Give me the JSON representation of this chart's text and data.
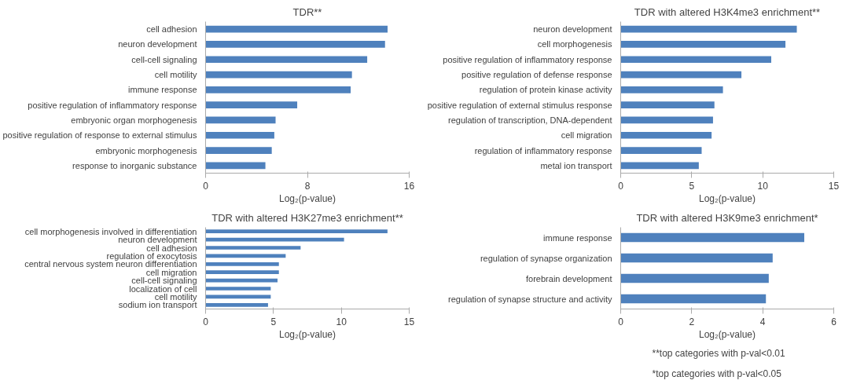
{
  "chart_data": [
    {
      "type": "bar",
      "orientation": "horizontal",
      "title": "TDR**",
      "xlabel": "Log₂(p-value)",
      "color": "#4f81bd",
      "xlim": [
        0,
        16
      ],
      "xticks": [
        0,
        8,
        16
      ],
      "categories": [
        "cell adhesion",
        "neuron development",
        "cell-cell signaling",
        "cell motility",
        "immune response",
        "positive regulation of inflammatory response",
        "embryonic organ morphogenesis",
        "positive regulation of response to external stimulus",
        "embryonic morphogenesis",
        "response to inorganic substance"
      ],
      "values": [
        14.3,
        14.1,
        12.7,
        11.5,
        11.4,
        7.2,
        5.5,
        5.4,
        5.2,
        4.7
      ]
    },
    {
      "type": "bar",
      "orientation": "horizontal",
      "title": "TDR with altered H3K4me3 enrichment**",
      "xlabel": "Log₂(p-value)",
      "color": "#4f81bd",
      "xlim": [
        0,
        15
      ],
      "xticks": [
        0,
        5,
        10,
        15
      ],
      "categories": [
        "neuron development",
        "cell morphogenesis",
        "positive regulation of inflammatory response",
        "positive regulation of defense response",
        "regulation of protein kinase activity",
        "positive regulation of external stimulus response",
        "regulation of transcription, DNA-dependent",
        "cell migration",
        "regulation of inflammatory response",
        "metal ion transport"
      ],
      "values": [
        12.4,
        11.6,
        10.6,
        8.5,
        7.2,
        6.6,
        6.5,
        6.4,
        5.7,
        5.5
      ]
    },
    {
      "type": "bar",
      "orientation": "horizontal",
      "title": "TDR with altered H3K27me3 enrichment**",
      "xlabel": "Log₂(p-value)",
      "color": "#4f81bd",
      "xlim": [
        0,
        15
      ],
      "xticks": [
        0,
        5,
        10,
        15
      ],
      "categories": [
        "cell morphogenesis involved in differentiation",
        "neuron development",
        "cell adhesion",
        "regulation of exocytosis",
        "central nervous system neuron differentiation",
        "cell migration",
        "cell-cell signaling",
        "localization of cell",
        "cell motility",
        "sodium ion transport"
      ],
      "values": [
        13.4,
        10.2,
        7.0,
        5.9,
        5.4,
        5.4,
        5.3,
        4.8,
        4.8,
        4.6
      ]
    },
    {
      "type": "bar",
      "orientation": "horizontal",
      "title": "TDR with altered H3K9me3 enrichment*",
      "xlabel": "Log₂(p-value)",
      "color": "#4f81bd",
      "xlim": [
        0,
        6
      ],
      "xticks": [
        0,
        2,
        4,
        6
      ],
      "categories": [
        "immune response",
        "regulation of synapse organization",
        "forebrain development",
        "regulation of synapse structure and activity"
      ],
      "values": [
        5.17,
        4.28,
        4.17,
        4.09
      ],
      "annotations": [
        "**top categories with p-val<0.01",
        "*top categories with p-val<0.05"
      ]
    }
  ]
}
